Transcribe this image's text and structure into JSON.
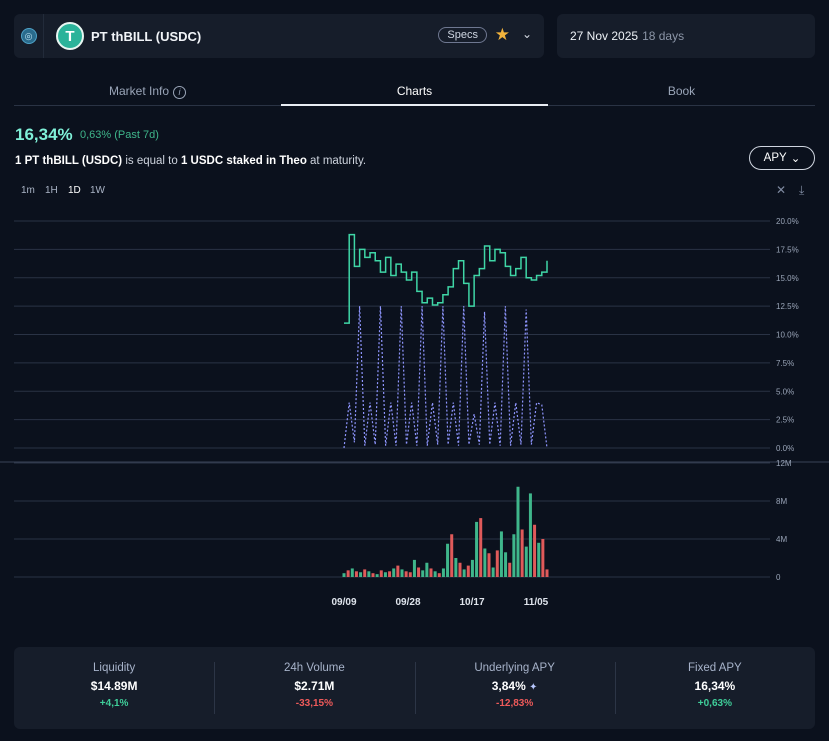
{
  "header": {
    "token_name": "PT thBILL (USDC)",
    "specs_label": "Specs",
    "maturity_date": "27 Nov 2025",
    "days_left": "18 days"
  },
  "tabs": [
    {
      "label": "Market Info"
    },
    {
      "label": "Charts"
    },
    {
      "label": "Book"
    }
  ],
  "summary": {
    "apy_value": "16,34%",
    "apy_change": "0,63% (Past 7d)",
    "desc_1": "1 PT thBILL (USDC)",
    "desc_2": " is equal to ",
    "desc_3": "1 USDC staked in Theo",
    "desc_4": " at maturity.",
    "apy_toggle": "APY"
  },
  "timeframes": [
    "1m",
    "1H",
    "1D",
    "1W"
  ],
  "colors": {
    "fixed": "#3fd6a6",
    "underlying": "#8f96ff",
    "vol_up": "#3fb68b",
    "vol_down": "#e05a5a"
  },
  "chart_data": {
    "type": "line",
    "x_tick_labels": [
      "09/09",
      "09/28",
      "10/17",
      "11/05"
    ],
    "y_ticks_right": [
      "20.0%",
      "17.5%",
      "15.0%",
      "12.5%",
      "10.0%",
      "7.5%",
      "5.0%",
      "2.5%",
      "0.0%"
    ],
    "volume_ticks": [
      "12M",
      "8M",
      "4M",
      "0"
    ],
    "ylim": [
      0,
      20
    ],
    "volume_ylim": [
      0,
      12
    ],
    "series": [
      {
        "values": [
          11,
          18.8,
          16,
          17.5,
          16.8,
          17.2,
          16.5,
          15.5,
          16.8,
          15.2,
          16.2,
          15.5,
          14.8,
          15.5,
          13.8,
          12.8,
          13.2,
          12.6,
          12.8,
          13.5,
          14.2,
          15.8,
          16.5,
          14.5,
          12.5,
          15.2,
          15.8,
          17.8,
          16.5,
          17.5,
          17.2,
          16,
          15.2,
          15.8,
          16.8,
          15,
          14.8,
          15.2,
          15.5,
          16.5
        ]
      },
      {
        "values": [
          0,
          4,
          0.5,
          12.5,
          0.2,
          4,
          0.3,
          12.5,
          0.2,
          4,
          0.2,
          12.5,
          0.3,
          4,
          0.2,
          12.5,
          0.2,
          4,
          0.3,
          12.5,
          0.3,
          4,
          0.2,
          12.5,
          0.3,
          3,
          0.3,
          12,
          0.3,
          4,
          0.2,
          12.5,
          0.2,
          4,
          0.3,
          12.2,
          0.3,
          4,
          3.8,
          0
        ]
      }
    ],
    "volume": [
      0.4,
      0.7,
      0.9,
      0.6,
      0.5,
      0.8,
      0.6,
      0.4,
      0.3,
      0.7,
      0.5,
      0.6,
      0.9,
      1.2,
      0.8,
      0.6,
      0.5,
      1.8,
      1.0,
      0.7,
      1.5,
      0.9,
      0.6,
      0.4,
      0.9,
      3.5,
      4.5,
      2.0,
      1.5,
      0.8,
      1.2,
      1.8,
      5.8,
      6.2,
      3.0,
      2.5,
      1.0,
      2.8,
      4.8,
      2.6,
      1.5,
      4.5,
      9.5,
      5.0,
      3.2,
      8.8,
      5.5,
      3.6,
      4.0,
      0.8
    ],
    "volume_colors": [
      1,
      0,
      1,
      0,
      1,
      0,
      1,
      0,
      1,
      0,
      1,
      0,
      1,
      0,
      1,
      0,
      0,
      1,
      0,
      1,
      1,
      0,
      1,
      0,
      1,
      1,
      0,
      1,
      0,
      1,
      0,
      1,
      1,
      0,
      1,
      0,
      1,
      0,
      1,
      1,
      0,
      1,
      1,
      0,
      1,
      1,
      0,
      1,
      0,
      0
    ]
  },
  "stats": [
    {
      "label": "Liquidity",
      "value": "$14.89M",
      "change": "+4,1%",
      "dir": "pos"
    },
    {
      "label": "24h Volume",
      "value": "$2.71M",
      "change": "-33,15%",
      "dir": "neg"
    },
    {
      "label": "Underlying APY",
      "value": "3,84%",
      "change": "-12,83%",
      "dir": "neg"
    },
    {
      "label": "Fixed APY",
      "value": "16,34%",
      "change": "+0,63%",
      "dir": "pos"
    }
  ]
}
